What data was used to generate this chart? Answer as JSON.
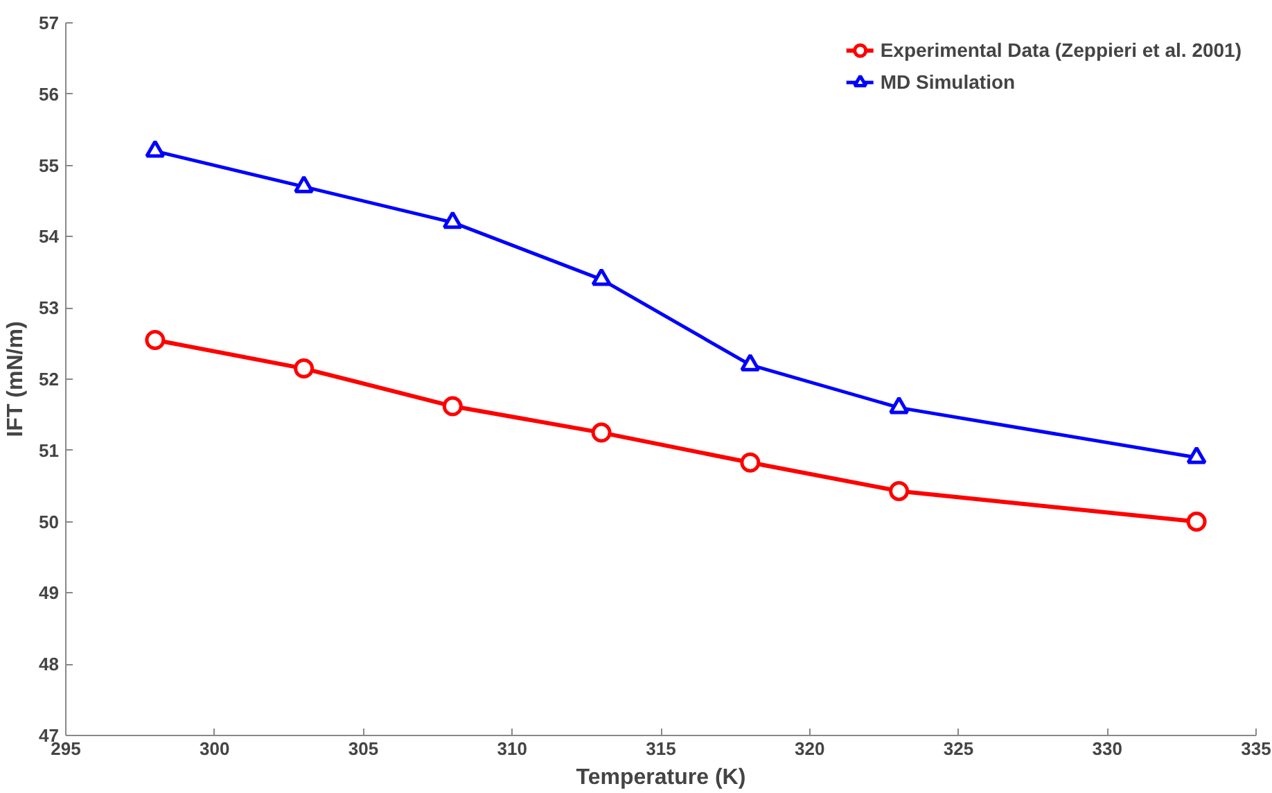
{
  "chart_data": {
    "type": "line",
    "xlabel": "Temperature (K)",
    "ylabel": "IFT (mN/m)",
    "x": [
      298,
      303,
      308,
      313,
      318,
      323,
      333
    ],
    "series": [
      {
        "name": "Experimental Data (Zeppieri et al. 2001)",
        "color": "#ff0000",
        "marker": "circle",
        "values": [
          52.55,
          52.15,
          51.62,
          51.25,
          50.83,
          50.43,
          50.0
        ]
      },
      {
        "name": "MD Simulation",
        "color": "#0000ff",
        "marker": "triangle",
        "values": [
          55.2,
          54.7,
          54.2,
          53.4,
          52.2,
          51.6,
          50.9
        ]
      }
    ],
    "xlim": [
      295,
      335
    ],
    "xticks": [
      295,
      300,
      305,
      310,
      315,
      320,
      325,
      330,
      335
    ],
    "ylim": [
      47,
      57
    ],
    "yticks": [
      47,
      48,
      49,
      50,
      51,
      52,
      53,
      54,
      55,
      56,
      57
    ],
    "grid": false,
    "legend": "top right",
    "line_style": "solid"
  }
}
